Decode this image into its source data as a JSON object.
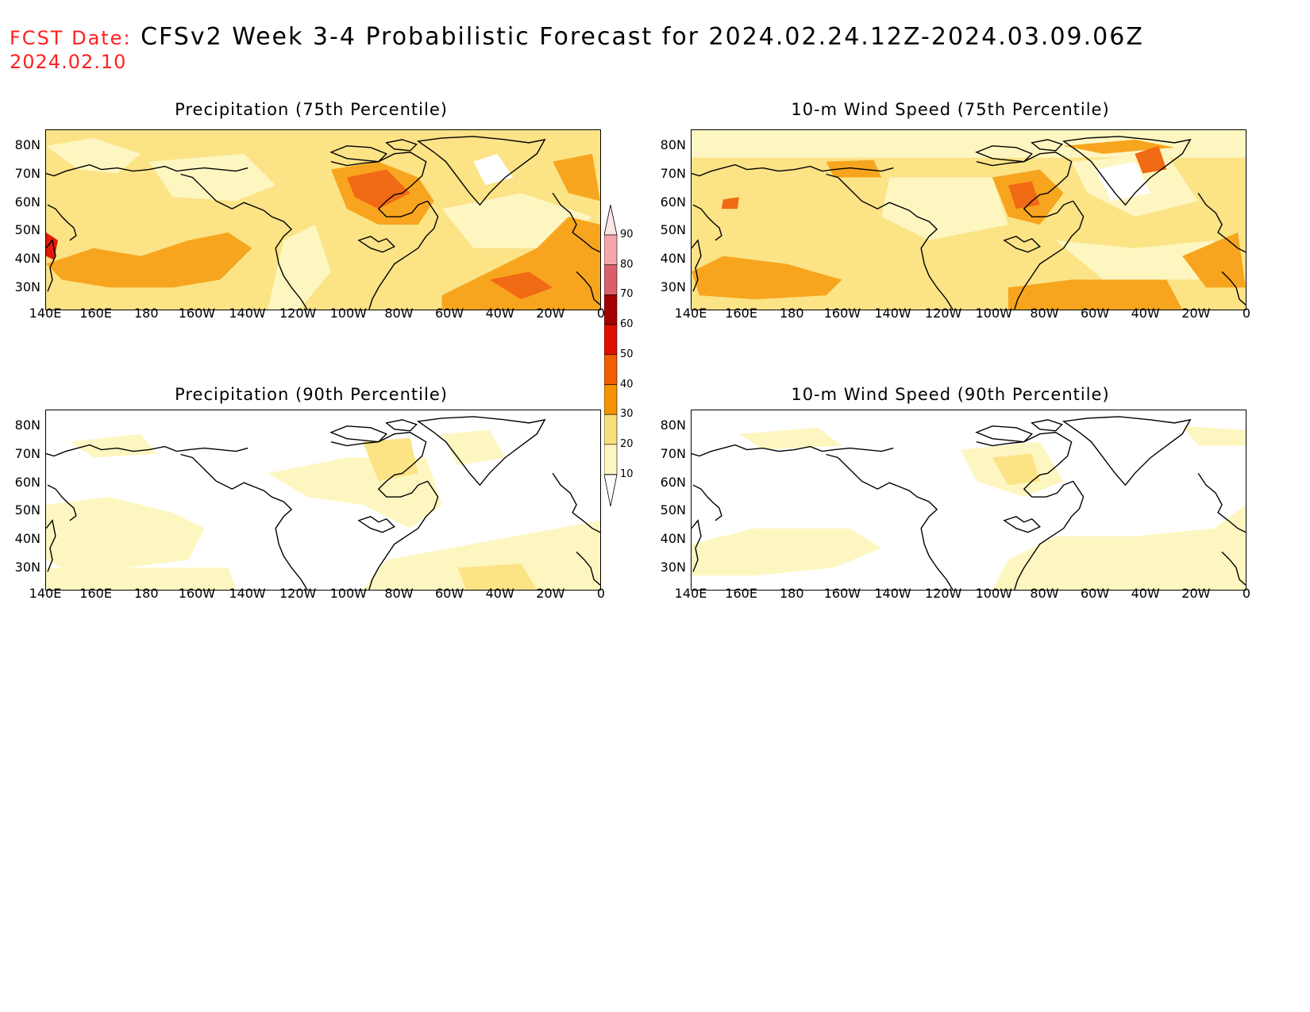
{
  "header": {
    "fcst_label": "FCST Date:",
    "fcst_date": "2024.02.10",
    "title": "CFSv2 Week 3-4 Probabilistic Forecast for 2024.02.24.12Z-2024.03.09.06Z"
  },
  "panels": [
    {
      "title": "Precipitation (75th Percentile)"
    },
    {
      "title": "10-m Wind Speed (75th Percentile)"
    },
    {
      "title": "Precipitation (90th Percentile)"
    },
    {
      "title": "10-m Wind Speed (90th Percentile)"
    }
  ],
  "axes": {
    "lat_labels": [
      "80N",
      "70N",
      "60N",
      "50N",
      "40N",
      "30N"
    ],
    "lon_labels": [
      "140E",
      "160E",
      "180",
      "160W",
      "140W",
      "120W",
      "100W",
      "80W",
      "60W",
      "40W",
      "20W",
      "0"
    ]
  },
  "colorbar": {
    "levels": [
      "90",
      "80",
      "70",
      "60",
      "50",
      "40",
      "30",
      "20",
      "10"
    ],
    "colors": [
      "#f4a6ac",
      "#d9606a",
      "#a30000",
      "#e01000",
      "#f06000",
      "#f49400",
      "#f9e17a",
      "#fef6c0"
    ]
  },
  "colors": {
    "level_10_20": "#fef6c0",
    "level_20_30": "#fbe386",
    "level_30_40": "#f7a51e",
    "level_40_50": "#f16a14",
    "level_50_60": "#e01a05",
    "header_red": "#ff2020"
  }
}
